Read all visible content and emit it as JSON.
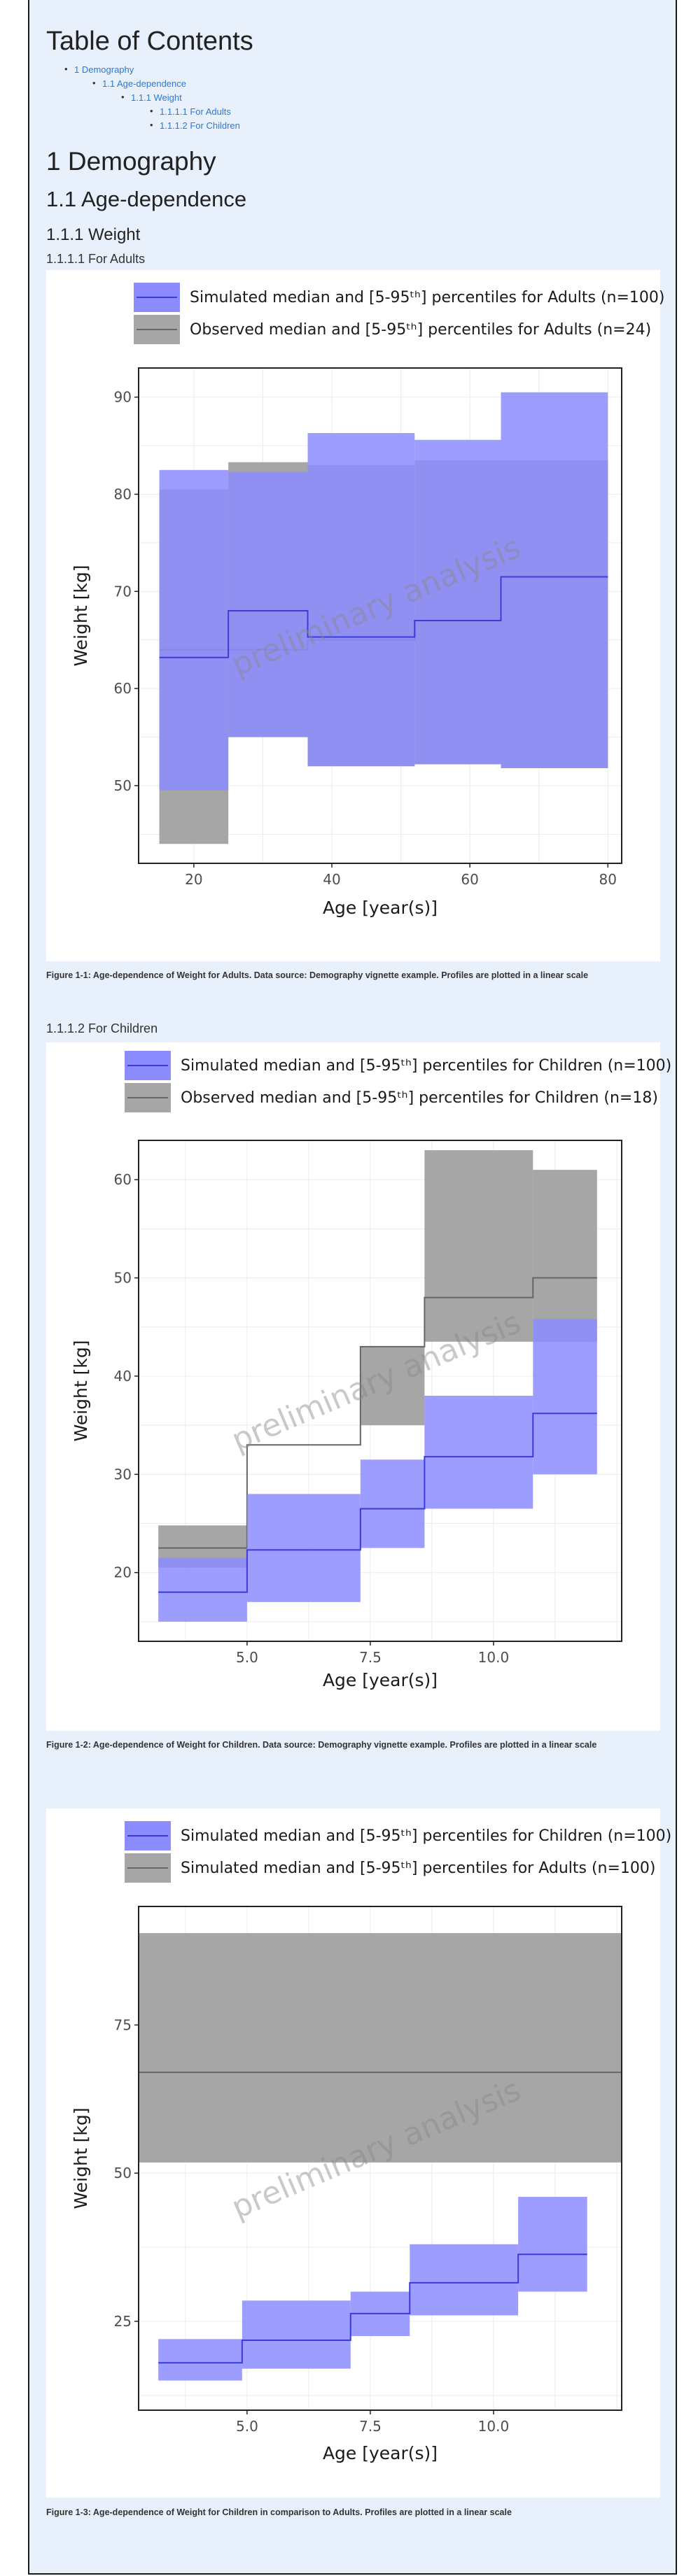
{
  "toc": {
    "title": "Table of Contents",
    "items": [
      {
        "label": "1 Demography",
        "level": 0
      },
      {
        "label": "1.1 Age-dependence",
        "level": 1
      },
      {
        "label": "1.1.1 Weight",
        "level": 2
      },
      {
        "label": "1.1.1.1 For Adults",
        "level": 3
      },
      {
        "label": "1.1.1.2 For Children",
        "level": 3
      }
    ]
  },
  "headings": {
    "h1": "1 Demography",
    "h2": "1.1 Age-dependence",
    "h3": "1.1.1 Weight",
    "h4_adults": "1.1.1.1 For Adults",
    "h4_children": "1.1.1.2 For Children"
  },
  "watermark": "preliminary analysis",
  "colors": {
    "simulated": "#8c8cff",
    "simulated_line": "#3b3bdc",
    "observed": "#a6a6a6",
    "observed_line": "#666666"
  },
  "figures": [
    {
      "caption": "Figure 1-1: Age-dependence of Weight for Adults. Data source: Demography vignette example. Profiles are plotted in a linear scale",
      "chart_data": {
        "type": "area",
        "xlabel": "Age [year(s)]",
        "ylabel": "Weight [kg]",
        "xlim": [
          12,
          82
        ],
        "ylim": [
          42,
          93
        ],
        "xticks": [
          20,
          40,
          60,
          80
        ],
        "yticks": [
          50,
          60,
          70,
          80,
          90
        ],
        "legend": [
          "Simulated median and [5-95ᵗʰ] percentiles for Adults (n=100)",
          "Observed median and [5-95ᵗʰ] percentiles for Adults (n=24)"
        ],
        "series": [
          {
            "role": "observed",
            "steps": [
              [
                15,
                25,
                44,
                80.5,
                64
              ],
              [
                25,
                36.5,
                55,
                83.3,
                64
              ],
              [
                36.5,
                52,
                52,
                83,
                65
              ],
              [
                52,
                64.5,
                52.2,
                83.5,
                67
              ],
              [
                64.5,
                80,
                51.8,
                83.5,
                71.5
              ]
            ],
            "bands": [
              [
                15,
                25,
                44,
                80.5
              ],
              [
                25,
                36.5,
                55,
                83.3
              ]
            ]
          },
          {
            "role": "simulated",
            "steps": [
              [
                15,
                25,
                49.5,
                82.5,
                63.2
              ],
              [
                25,
                36.5,
                55,
                82.3,
                68
              ],
              [
                36.5,
                52,
                52,
                86.3,
                65.3
              ],
              [
                52,
                64.5,
                52.2,
                85.6,
                67
              ],
              [
                64.5,
                80,
                51.8,
                90.5,
                71.5
              ]
            ]
          }
        ]
      }
    },
    {
      "caption": "Figure 1-2: Age-dependence of Weight for Children. Data source: Demography vignette example. Profiles are plotted in a linear scale",
      "chart_data": {
        "type": "area",
        "xlabel": "Age [year(s)]",
        "ylabel": "Weight [kg]",
        "xlim": [
          2.8,
          12.6
        ],
        "ylim": [
          13,
          64
        ],
        "xticks": [
          5.0,
          7.5,
          10.0
        ],
        "yticks": [
          20,
          30,
          40,
          50,
          60
        ],
        "legend": [
          "Simulated median and [5-95ᵗʰ] percentiles for Children (n=100)",
          "Observed median and [5-95ᵗʰ] percentiles for Children (n=18)"
        ],
        "series": [
          {
            "role": "observed",
            "steps": [
              [
                3.2,
                5.0,
                20.5,
                24.8,
                22.5
              ],
              [
                5.0,
                7.3,
                28,
                28,
                33
              ],
              [
                7.3,
                8.6,
                35,
                43,
                43
              ],
              [
                8.6,
                10.8,
                43.5,
                63,
                48
              ],
              [
                10.8,
                12.1,
                43.5,
                61,
                50
              ]
            ]
          },
          {
            "role": "simulated",
            "steps": [
              [
                3.2,
                5.0,
                15,
                21.5,
                18
              ],
              [
                5.0,
                7.3,
                17,
                28,
                22.3
              ],
              [
                7.3,
                8.6,
                22.5,
                31.5,
                26.5
              ],
              [
                8.6,
                10.8,
                26.5,
                38,
                31.8
              ],
              [
                10.8,
                12.1,
                30,
                45.8,
                36.2
              ]
            ]
          }
        ]
      }
    },
    {
      "caption": "Figure 1-3: Age-dependence of Weight for Children in comparison to Adults. Profiles are plotted in a linear scale",
      "chart_data": {
        "type": "area",
        "xlabel": "Age [year(s)]",
        "ylabel": "Weight [kg]",
        "xlim": [
          2.8,
          12.6
        ],
        "ylim": [
          10,
          95
        ],
        "xticks": [
          5.0,
          7.5,
          10.0
        ],
        "yticks": [
          25,
          50,
          75
        ],
        "legend": [
          "Simulated median and [5-95ᵗʰ] percentiles for Children (n=100)",
          "Simulated median and [5-95ᵗʰ] percentiles for Adults (n=100)"
        ],
        "series": [
          {
            "role": "observed",
            "steps": [
              [
                2.8,
                12.6,
                51.8,
                90.5,
                67
              ]
            ]
          },
          {
            "role": "simulated",
            "steps": [
              [
                3.2,
                4.9,
                15,
                22,
                18
              ],
              [
                4.9,
                7.1,
                17,
                28.5,
                21.8
              ],
              [
                7.1,
                8.3,
                22.5,
                30,
                26.3
              ],
              [
                8.3,
                10.5,
                26,
                38,
                31.5
              ],
              [
                10.5,
                11.9,
                30,
                46,
                36.3
              ]
            ]
          }
        ]
      }
    }
  ]
}
